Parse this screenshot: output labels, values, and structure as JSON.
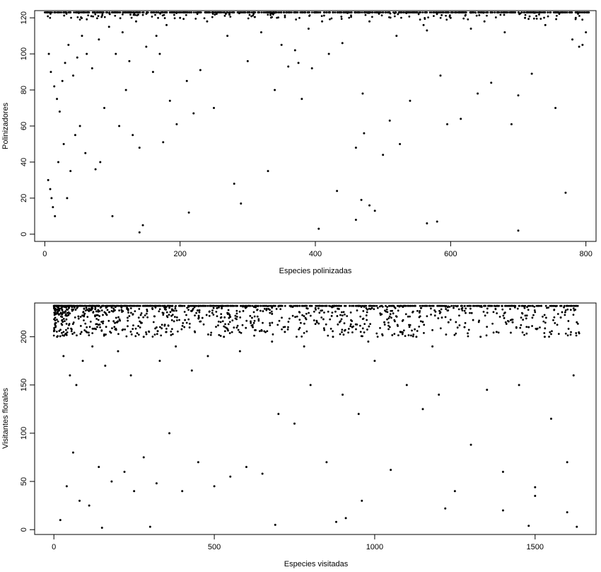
{
  "chart_data": [
    {
      "type": "scatter",
      "title": "",
      "xlabel": "Especies polinizadas",
      "ylabel": "Polinizadores",
      "xlim": [
        -15,
        815
      ],
      "ylim": [
        -4,
        124
      ],
      "xticks": [
        0,
        200,
        400,
        600,
        800
      ],
      "yticks": [
        0,
        20,
        40,
        60,
        80,
        100,
        120
      ],
      "grid": false,
      "legend": "none",
      "marker_color": "#000000",
      "series": [
        {
          "x": [
            140,
            145,
            213,
            405,
            432,
            460,
            468,
            472,
            480,
            488,
            565,
            580,
            700,
            5,
            8,
            10,
            12,
            15,
            20,
            28,
            33,
            38,
            45,
            52,
            60,
            75,
            82,
            88,
            100,
            110,
            120,
            130,
            140,
            160,
            170,
            175,
            185,
            195,
            210,
            220,
            230,
            250,
            280,
            290,
            330,
            340,
            360,
            375,
            380,
            395,
            420,
            460,
            470,
            500,
            510,
            525,
            540,
            565,
            585,
            595,
            615,
            640,
            660,
            690,
            700,
            720,
            755,
            770,
            785,
            795,
            800,
            6,
            9,
            14,
            18,
            22,
            26,
            30,
            35,
            42,
            48,
            55,
            62,
            70,
            80,
            95,
            105,
            115,
            125,
            135,
            150,
            165,
            180,
            200,
            240,
            270,
            300,
            320,
            350,
            370,
            390,
            410,
            440,
            480,
            520,
            560,
            600,
            630,
            650,
            680,
            710,
            740,
            780,
            790
          ],
          "y": [
            1,
            5,
            12,
            3,
            24,
            8,
            19,
            56,
            16,
            13,
            6,
            7,
            2,
            30,
            25,
            20,
            15,
            10,
            40,
            50,
            20,
            35,
            55,
            60,
            45,
            36,
            40,
            70,
            10,
            60,
            80,
            55,
            48,
            90,
            100,
            51,
            74,
            61,
            85,
            67,
            91,
            70,
            28,
            17,
            35,
            80,
            93,
            95,
            75,
            92,
            100,
            48,
            78,
            44,
            63,
            50,
            74,
            113,
            88,
            61,
            64,
            78,
            84,
            61,
            77,
            89,
            70,
            23,
            120,
            105,
            112,
            100,
            90,
            82,
            75,
            68,
            85,
            95,
            105,
            88,
            98,
            110,
            100,
            92,
            108,
            115,
            100,
            112,
            96,
            118,
            104,
            110,
            116,
            120,
            118,
            110,
            96,
            112,
            105,
            102,
            114,
            118,
            106,
            118,
            110,
            116,
            120,
            114,
            118,
            112,
            120,
            116,
            108,
            104
          ],
          "top_band": {
            "y_from": 119,
            "y_to": 123,
            "x_from": 0,
            "x_to": 805,
            "density": "dense"
          }
        }
      ]
    },
    {
      "type": "scatter",
      "title": "",
      "xlabel": "Especies visitadas",
      "ylabel": "Visitantes florales",
      "xlim": [
        -60,
        1690
      ],
      "ylim": [
        -5,
        235
      ],
      "xticks": [
        0,
        500,
        1000,
        1500
      ],
      "yticks": [
        0,
        50,
        100,
        150,
        200
      ],
      "grid": false,
      "legend": "none",
      "marker_color": "#000000",
      "series": [
        {
          "x": [
            150,
            300,
            690,
            880,
            910,
            960,
            1220,
            1400,
            1480,
            1500,
            1600,
            1630,
            20,
            40,
            60,
            80,
            110,
            140,
            180,
            220,
            250,
            280,
            320,
            360,
            400,
            450,
            500,
            550,
            600,
            650,
            700,
            750,
            800,
            850,
            900,
            950,
            1000,
            1050,
            1100,
            1150,
            1200,
            1250,
            1300,
            1350,
            1400,
            1450,
            1500,
            1550,
            1600,
            1620,
            10,
            30,
            50,
            70,
            90,
            120,
            160,
            200,
            240,
            280,
            330,
            380,
            430,
            480,
            530,
            580,
            620,
            680,
            720,
            780,
            820,
            870,
            930,
            980,
            1030,
            1080,
            1130,
            1180,
            1230,
            1280,
            1330,
            1380,
            1430,
            1480,
            1530,
            1580,
            1630
          ],
          "y": [
            2,
            3,
            5,
            8,
            12,
            30,
            22,
            20,
            4,
            44,
            18,
            3,
            10,
            45,
            80,
            30,
            25,
            65,
            50,
            60,
            40,
            75,
            48,
            100,
            40,
            70,
            45,
            55,
            65,
            58,
            120,
            110,
            150,
            70,
            140,
            120,
            175,
            62,
            150,
            125,
            140,
            40,
            88,
            145,
            60,
            150,
            35,
            115,
            70,
            160,
            200,
            180,
            160,
            150,
            175,
            190,
            170,
            185,
            160,
            200,
            175,
            190,
            165,
            180,
            200,
            185,
            210,
            195,
            205,
            190,
            215,
            200,
            210,
            195,
            215,
            205,
            200,
            190,
            215,
            210,
            200,
            205,
            215,
            210,
            200,
            220,
            215
          ],
          "top_band": {
            "y_from": 200,
            "y_to": 232,
            "x_from": 0,
            "x_to": 1640,
            "density": "dense"
          }
        }
      ]
    }
  ]
}
